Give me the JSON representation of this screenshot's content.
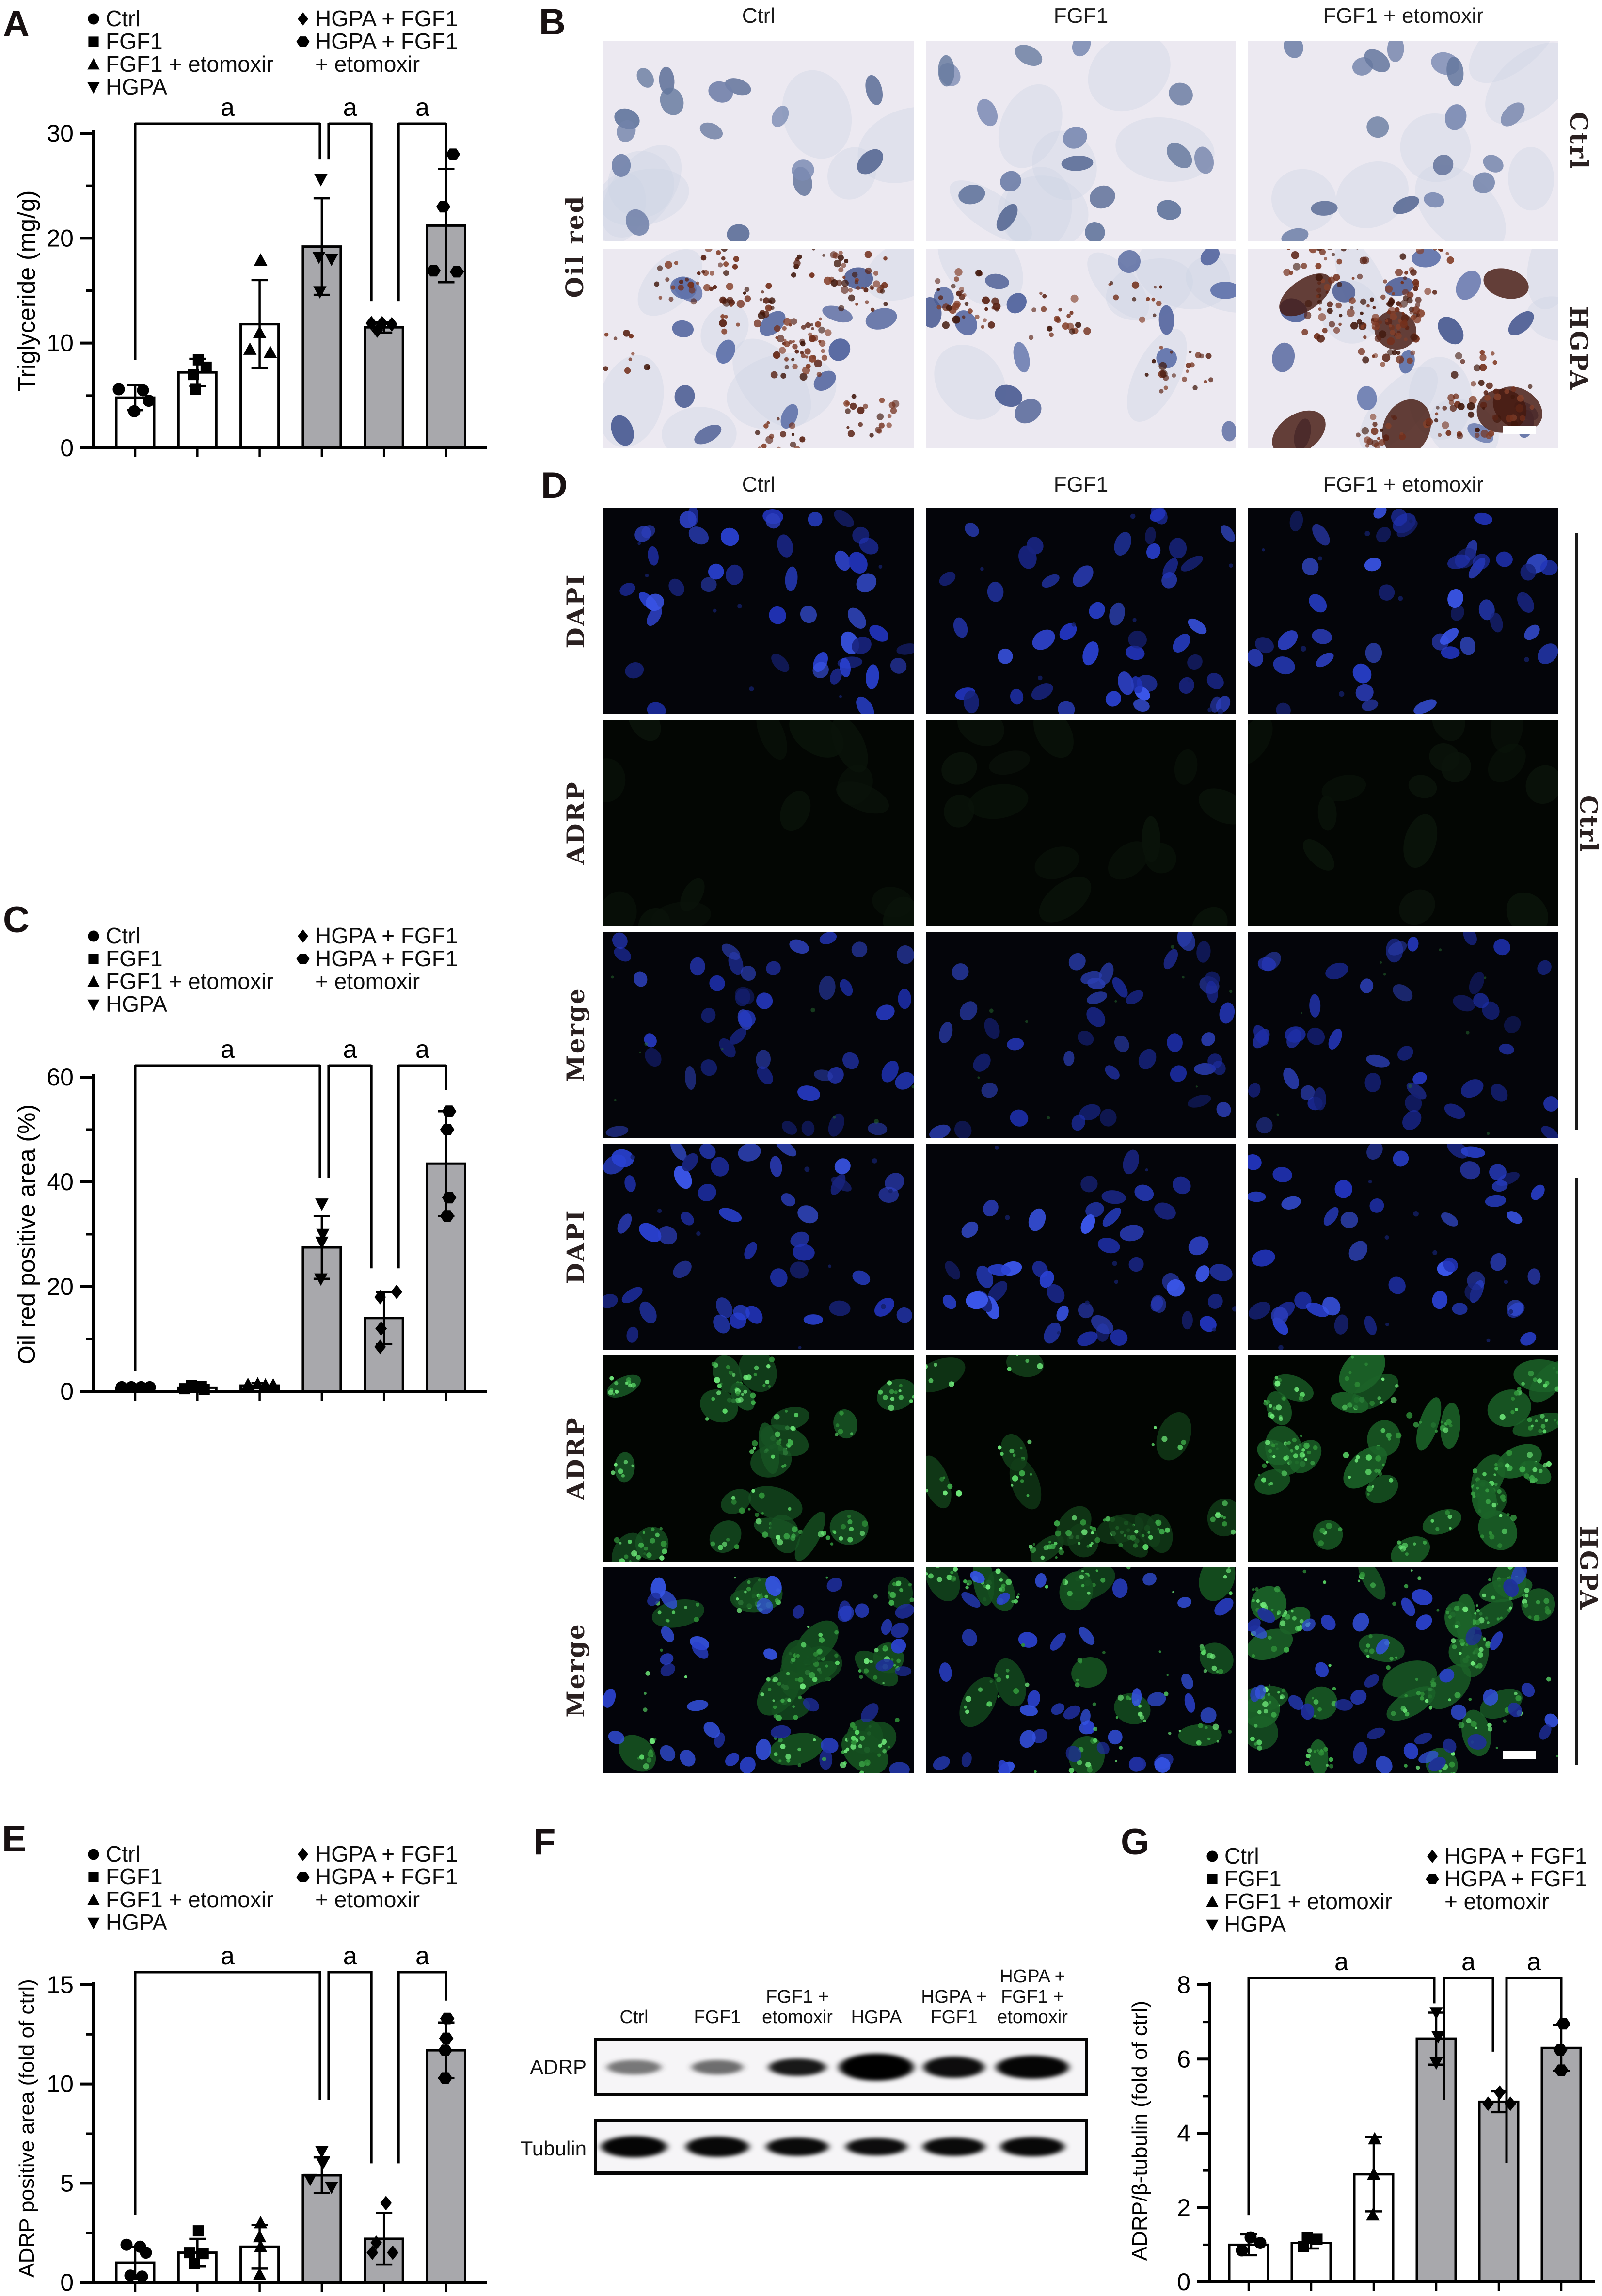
{
  "legend": {
    "col1": [
      {
        "marker": "circle",
        "label": "Ctrl"
      },
      {
        "marker": "square",
        "label": "FGF1"
      },
      {
        "marker": "triangle-up",
        "label": "FGF1 + etomoxir"
      },
      {
        "marker": "triangle-down",
        "label": "HGPA"
      }
    ],
    "col2": [
      {
        "marker": "diamond",
        "label": "HGPA + FGF1"
      },
      {
        "marker": "hexagon",
        "label": "HGPA + FGF1"
      }
    ],
    "col2_cont": "+ etomoxir"
  },
  "panels": {
    "A": {
      "letter": "A"
    },
    "B": {
      "letter": "B",
      "left_label": "Oil red",
      "col_headers": [
        "Ctrl",
        "FGF1",
        "FGF1 + etomoxir"
      ],
      "right_labels": [
        "Ctrl",
        "HGPA"
      ],
      "cell_types": [
        "oilred-ctrl",
        "oilred-ctrl",
        "oilred-ctrl",
        "oilred-hgpa",
        "oilred-hgpa-light",
        "oilred-hgpa-heavy"
      ]
    },
    "C": {
      "letter": "C"
    },
    "D": {
      "letter": "D",
      "col_headers": [
        "Ctrl",
        "FGF1",
        "FGF1 + etomoxir"
      ],
      "left_row_labels": [
        "DAPI",
        "ADRP",
        "Merge",
        "DAPI",
        "ADRP",
        "Merge"
      ],
      "right_labels": [
        "Ctrl",
        "HGPA"
      ],
      "cell_types": [
        "dapi",
        "dapi",
        "dapi",
        "adrp-neg",
        "adrp-neg",
        "adrp-neg",
        "merge-neg",
        "merge-neg",
        "merge-neg",
        "dapi",
        "dapi",
        "dapi",
        "adrp-pos",
        "adrp-pos-sparse",
        "adrp-pos-heavy",
        "merge-pos",
        "merge-pos-sparse",
        "merge-pos-heavy"
      ]
    },
    "E": {
      "letter": "E"
    },
    "F": {
      "letter": "F",
      "lane_labels": [
        [
          "Ctrl"
        ],
        [
          "FGF1"
        ],
        [
          "FGF1 +",
          "etomoxir"
        ],
        [
          "HGPA"
        ],
        [
          "HGPA +",
          "FGF1"
        ],
        [
          "HGPA +",
          "FGF1 +",
          "etomoxir"
        ]
      ],
      "blots": [
        {
          "label": "ADRP",
          "bands": [
            {
              "w": 112,
              "h": 30,
              "o": 0.32
            },
            {
              "w": 106,
              "h": 30,
              "o": 0.38
            },
            {
              "w": 118,
              "h": 36,
              "o": 0.9
            },
            {
              "w": 154,
              "h": 56,
              "o": 1.0
            },
            {
              "w": 126,
              "h": 44,
              "o": 0.95
            },
            {
              "w": 150,
              "h": 48,
              "o": 0.98
            }
          ]
        },
        {
          "label": "Tubulin",
          "bands": [
            {
              "w": 136,
              "h": 44,
              "o": 0.98
            },
            {
              "w": 130,
              "h": 42,
              "o": 0.97
            },
            {
              "w": 128,
              "h": 38,
              "o": 0.96
            },
            {
              "w": 126,
              "h": 36,
              "o": 0.95
            },
            {
              "w": 128,
              "h": 38,
              "o": 0.96
            },
            {
              "w": 132,
              "h": 40,
              "o": 0.97
            }
          ]
        }
      ]
    },
    "G": {
      "letter": "G"
    }
  },
  "chart_data": [
    {
      "id": "A",
      "type": "bar",
      "ylabel": "Triglyceride (mg/g)",
      "categories": [
        "Ctrl",
        "FGF1",
        "FGF1 + etomoxir",
        "HGPA",
        "HGPA + FGF1",
        "HGPA + FGF1 + etomoxir"
      ],
      "values": [
        4.8,
        7.2,
        11.8,
        19.2,
        11.5,
        21.2
      ],
      "errors": [
        1.2,
        1.3,
        4.2,
        4.6,
        0.5,
        5.4
      ],
      "points": [
        [
          [
            5.6,
            -34
          ],
          [
            5.5,
            16
          ],
          [
            4.5,
            28
          ],
          [
            3.5,
            -2
          ]
        ],
        [
          [
            8.4,
            2
          ],
          [
            7.7,
            18
          ],
          [
            7.0,
            -8
          ],
          [
            5.6,
            -4
          ]
        ],
        [
          [
            17.9,
            2
          ],
          [
            11.0,
            0
          ],
          [
            9.4,
            -20
          ],
          [
            9.1,
            22
          ]
        ],
        [
          [
            25.6,
            -2
          ],
          [
            18.2,
            -6
          ],
          [
            18.0,
            20
          ],
          [
            14.9,
            -4
          ]
        ],
        [
          [
            11.9,
            -26
          ],
          [
            11.9,
            -4
          ],
          [
            11.8,
            16
          ],
          [
            11.2,
            -14
          ]
        ],
        [
          [
            28.0,
            14
          ],
          [
            23.0,
            -6
          ],
          [
            16.9,
            -26
          ],
          [
            16.8,
            22
          ]
        ]
      ],
      "markers": [
        "circle",
        "square",
        "triangle-up",
        "triangle-down",
        "diamond",
        "hexagon"
      ],
      "bar_fills": [
        "#ffffff",
        "#ffffff",
        "#ffffff",
        "#a8a8ac",
        "#a8a8ac",
        "#a8a8ac"
      ],
      "ylim": [
        0,
        30
      ],
      "yticks": [
        0,
        10,
        20,
        30
      ],
      "sig_brackets": [
        {
          "label": "a",
          "from": 0,
          "to": 3,
          "x1_off": 0,
          "x2_off": -4,
          "left_drop": 8.4,
          "right_drop": 27.5
        },
        {
          "label": "a",
          "from": 3,
          "to": 4,
          "x1_off": 14,
          "x2_off": -26,
          "left_drop": 27.5,
          "right_drop": 14.0
        },
        {
          "label": "a",
          "from": 4,
          "to": 5,
          "x1_off": 30,
          "x2_off": 0,
          "left_drop": 14.0,
          "right_drop": 24.6
        }
      ],
      "layout": {
        "x_axis": 192,
        "y0": 924,
        "ytop": 275,
        "first_cx": 279,
        "pitch": 128.3,
        "bw": 78,
        "right": 1005,
        "ylabel_x": 72,
        "ylabel_y": 600,
        "ylabel_fs": 50,
        "bracket_y": 255
      }
    },
    {
      "id": "C",
      "type": "bar",
      "ylabel": "Oil red positive area (%)",
      "categories": [
        "Ctrl",
        "FGF1",
        "FGF1 + etomoxir",
        "HGPA",
        "HGPA + FGF1",
        "HGPA + FGF1 + etomoxir"
      ],
      "values": [
        0.7,
        0.7,
        1.1,
        27.5,
        14.0,
        43.5
      ],
      "errors": [
        0.3,
        0.4,
        0.5,
        6.0,
        5.0,
        10.0
      ],
      "points": [
        [
          [
            0.8,
            -28
          ],
          [
            0.8,
            -8
          ],
          [
            0.8,
            12
          ],
          [
            0.8,
            30
          ]
        ],
        [
          [
            1.1,
            -12
          ],
          [
            0.9,
            8
          ],
          [
            0.5,
            -26
          ],
          [
            0.4,
            14
          ]
        ],
        [
          [
            1.3,
            -24
          ],
          [
            1.4,
            -4
          ],
          [
            1.2,
            12
          ],
          [
            1.2,
            28
          ]
        ],
        [
          [
            35.8,
            0
          ],
          [
            30.0,
            2
          ],
          [
            28.5,
            0
          ],
          [
            21.5,
            -2
          ]
        ],
        [
          [
            18.0,
            -8
          ],
          [
            19.0,
            26
          ],
          [
            12.0,
            -6
          ],
          [
            8.5,
            -8
          ]
        ],
        [
          [
            53.5,
            6
          ],
          [
            50.0,
            2
          ],
          [
            37.0,
            6
          ],
          [
            33.5,
            2
          ]
        ]
      ],
      "markers": [
        "circle",
        "square",
        "triangle-up",
        "triangle-down",
        "diamond",
        "hexagon"
      ],
      "bar_fills": [
        "#ffffff",
        "#ffffff",
        "#ffffff",
        "#a8a8ac",
        "#a8a8ac",
        "#a8a8ac"
      ],
      "ylim": [
        0,
        60
      ],
      "yticks": [
        0,
        20,
        40,
        60
      ],
      "sig_brackets": [
        {
          "label": "a",
          "from": 0,
          "to": 3,
          "x1_off": 0,
          "x2_off": -4,
          "left_drop": 3.8,
          "right_drop": 40.8
        },
        {
          "label": "a",
          "from": 3,
          "to": 4,
          "x1_off": 14,
          "x2_off": -26,
          "left_drop": 40.8,
          "right_drop": 23.5
        },
        {
          "label": "a",
          "from": 4,
          "to": 5,
          "x1_off": 30,
          "x2_off": 0,
          "left_drop": 23.5,
          "right_drop": 57.5
        }
      ],
      "layout": {
        "x_axis": 192,
        "y0": 2870,
        "ytop": 2222,
        "first_cx": 279,
        "pitch": 128.3,
        "bw": 78,
        "right": 1005,
        "ylabel_x": 72,
        "ylabel_y": 2546,
        "ylabel_fs": 50,
        "bracket_y": 2198
      }
    },
    {
      "id": "E",
      "type": "bar",
      "ylabel": "ADRP positive area (fold of ctrl)",
      "categories": [
        "Ctrl",
        "FGF1",
        "FGF1 + etomoxir",
        "HGPA",
        "HGPA + FGF1",
        "HGPA + FGF1 + etomoxir"
      ],
      "values": [
        1.0,
        1.5,
        1.8,
        5.4,
        2.2,
        11.7
      ],
      "errors": [
        0.8,
        0.7,
        1.1,
        0.9,
        1.3,
        1.4
      ],
      "points": [
        [
          [
            1.9,
            -18
          ],
          [
            1.8,
            10
          ],
          [
            1.5,
            22
          ],
          [
            0.35,
            -10
          ],
          [
            0.3,
            14
          ]
        ],
        [
          [
            2.6,
            2
          ],
          [
            1.5,
            -16
          ],
          [
            1.45,
            12
          ],
          [
            0.95,
            -6
          ]
        ],
        [
          [
            3.0,
            2
          ],
          [
            2.3,
            0
          ],
          [
            1.8,
            2
          ],
          [
            0.4,
            0
          ]
        ],
        [
          [
            6.6,
            0
          ],
          [
            6.0,
            2
          ],
          [
            5.2,
            -24
          ],
          [
            4.8,
            20
          ]
        ],
        [
          [
            4.0,
            4
          ],
          [
            2.0,
            -16
          ],
          [
            1.5,
            -24
          ],
          [
            1.5,
            18
          ]
        ],
        [
          [
            13.3,
            2
          ],
          [
            12.3,
            0
          ],
          [
            11.7,
            -2
          ],
          [
            10.3,
            -2
          ]
        ]
      ],
      "markers": [
        "circle",
        "square",
        "triangle-up",
        "triangle-down",
        "diamond",
        "hexagon"
      ],
      "bar_fills": [
        "#ffffff",
        "#ffffff",
        "#ffffff",
        "#a8a8ac",
        "#a8a8ac",
        "#a8a8ac"
      ],
      "ylim": [
        0,
        15
      ],
      "yticks": [
        0,
        5,
        10,
        15
      ],
      "sig_brackets": [
        {
          "label": "a",
          "from": 0,
          "to": 3,
          "x1_off": 0,
          "x2_off": -4,
          "left_drop": 3.4,
          "right_drop": 9.2
        },
        {
          "label": "a",
          "from": 3,
          "to": 4,
          "x1_off": 14,
          "x2_off": -26,
          "left_drop": 9.2,
          "right_drop": 6.0
        },
        {
          "label": "a",
          "from": 4,
          "to": 5,
          "x1_off": 30,
          "x2_off": 0,
          "left_drop": 6.0,
          "right_drop": 14.2
        }
      ],
      "layout": {
        "x_axis": 192,
        "y0": 4708,
        "ytop": 4094,
        "first_cx": 279,
        "pitch": 128.3,
        "bw": 78,
        "right": 1005,
        "ylabel_x": 70,
        "ylabel_y": 4390,
        "ylabel_fs": 44,
        "bracket_y": 4068
      }
    },
    {
      "id": "G",
      "type": "bar",
      "ylabel": "ADRP/β-tubulin (fold of ctrl)",
      "categories": [
        "Ctrl",
        "FGF1",
        "FGF1 + etomoxir",
        "HGPA",
        "HGPA + FGF1",
        "HGPA + FGF1 + etomoxir"
      ],
      "values": [
        1.0,
        1.05,
        2.9,
        6.55,
        4.85,
        6.3
      ],
      "errors": [
        0.28,
        0.15,
        1.0,
        0.7,
        0.28,
        0.62
      ],
      "points": [
        [
          [
            1.2,
            4
          ],
          [
            1.05,
            24
          ],
          [
            0.85,
            -14
          ]
        ],
        [
          [
            1.2,
            -8
          ],
          [
            1.15,
            12
          ],
          [
            0.95,
            -16
          ]
        ],
        [
          [
            3.85,
            2
          ],
          [
            2.9,
            0
          ],
          [
            1.8,
            -2
          ]
        ],
        [
          [
            7.25,
            0
          ],
          [
            6.6,
            4
          ],
          [
            5.9,
            0
          ]
        ],
        [
          [
            5.1,
            2
          ],
          [
            4.8,
            -22
          ],
          [
            4.8,
            24
          ]
        ],
        [
          [
            6.95,
            4
          ],
          [
            6.25,
            -2
          ],
          [
            5.7,
            0
          ]
        ]
      ],
      "markers": [
        "circle",
        "square",
        "triangle-up",
        "triangle-down",
        "diamond",
        "hexagon"
      ],
      "bar_fills": [
        "#ffffff",
        "#ffffff",
        "#ffffff",
        "#a8a8ac",
        "#a8a8ac",
        "#a8a8ac"
      ],
      "ylim": [
        0,
        8
      ],
      "yticks": [
        0,
        2,
        4,
        6,
        8
      ],
      "sig_brackets": [
        {
          "label": "a",
          "from": 0,
          "to": 3,
          "x1_off": 0,
          "x2_off": -4,
          "left_drop": 1.8,
          "right_drop": 7.5
        },
        {
          "label": "a",
          "from": 3,
          "to": 4,
          "x1_off": 16,
          "x2_off": -12,
          "left_drop": 4.9,
          "right_drop": 6.2
        },
        {
          "label": "a",
          "from": 4,
          "to": 5,
          "x1_off": 16,
          "x2_off": 0,
          "left_drop": 3.2,
          "right_drop": 7.1
        }
      ],
      "layout": {
        "x_axis": 2496,
        "y0": 4707,
        "ytop": 4094,
        "first_cx": 2576,
        "pitch": 129,
        "bw": 80,
        "right": 3290,
        "ylabel_x": 2366,
        "ylabel_y": 4395,
        "ylabel_fs": 44,
        "bracket_y": 4080
      }
    }
  ]
}
